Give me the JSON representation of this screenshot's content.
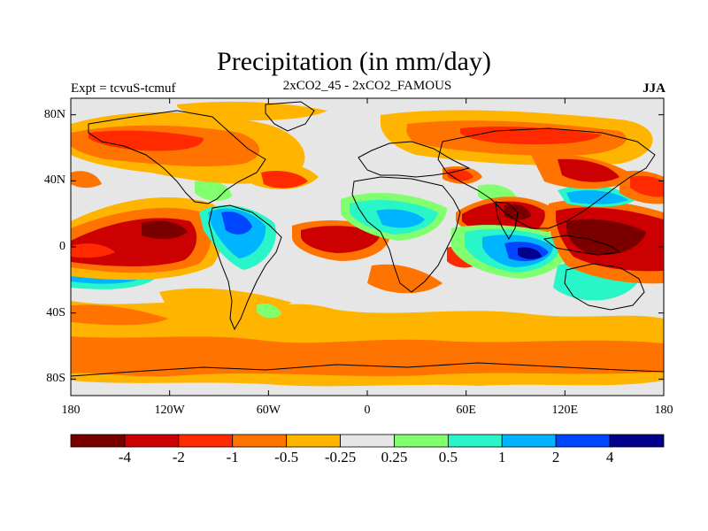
{
  "title": "Precipitation (in mm/day)",
  "subtitle_left": "Expt = tcvuS-tcmuf",
  "subtitle_center": "2xCO2_45 - 2xCO2_FAMOUS",
  "subtitle_right": "JJA",
  "lat_ticks": [
    {
      "label": "80N",
      "value": 80
    },
    {
      "label": "40N",
      "value": 40
    },
    {
      "label": "0",
      "value": 0
    },
    {
      "label": "40S",
      "value": -40
    },
    {
      "label": "80S",
      "value": -80
    }
  ],
  "lon_ticks": [
    {
      "label": "180",
      "value": -180
    },
    {
      "label": "120W",
      "value": -120
    },
    {
      "label": "60W",
      "value": -60
    },
    {
      "label": "0",
      "value": 0
    },
    {
      "label": "60E",
      "value": 60
    },
    {
      "label": "120E",
      "value": 120
    },
    {
      "label": "180",
      "value": 180
    }
  ],
  "colorbar": {
    "colors": [
      "#7a0000",
      "#cc0000",
      "#ff2a00",
      "#ff7300",
      "#ffb400",
      "#e6e6e6",
      "#82ff6e",
      "#28f5c8",
      "#00b4ff",
      "#0046ff",
      "#00008c"
    ],
    "labels": [
      "-4",
      "-2",
      "-1",
      "-0.5",
      "-0.25",
      "0.25",
      "0.5",
      "1",
      "2",
      "4"
    ]
  },
  "colors": {
    "background_field": "#e6e6e6",
    "coastline": "#000000"
  }
}
